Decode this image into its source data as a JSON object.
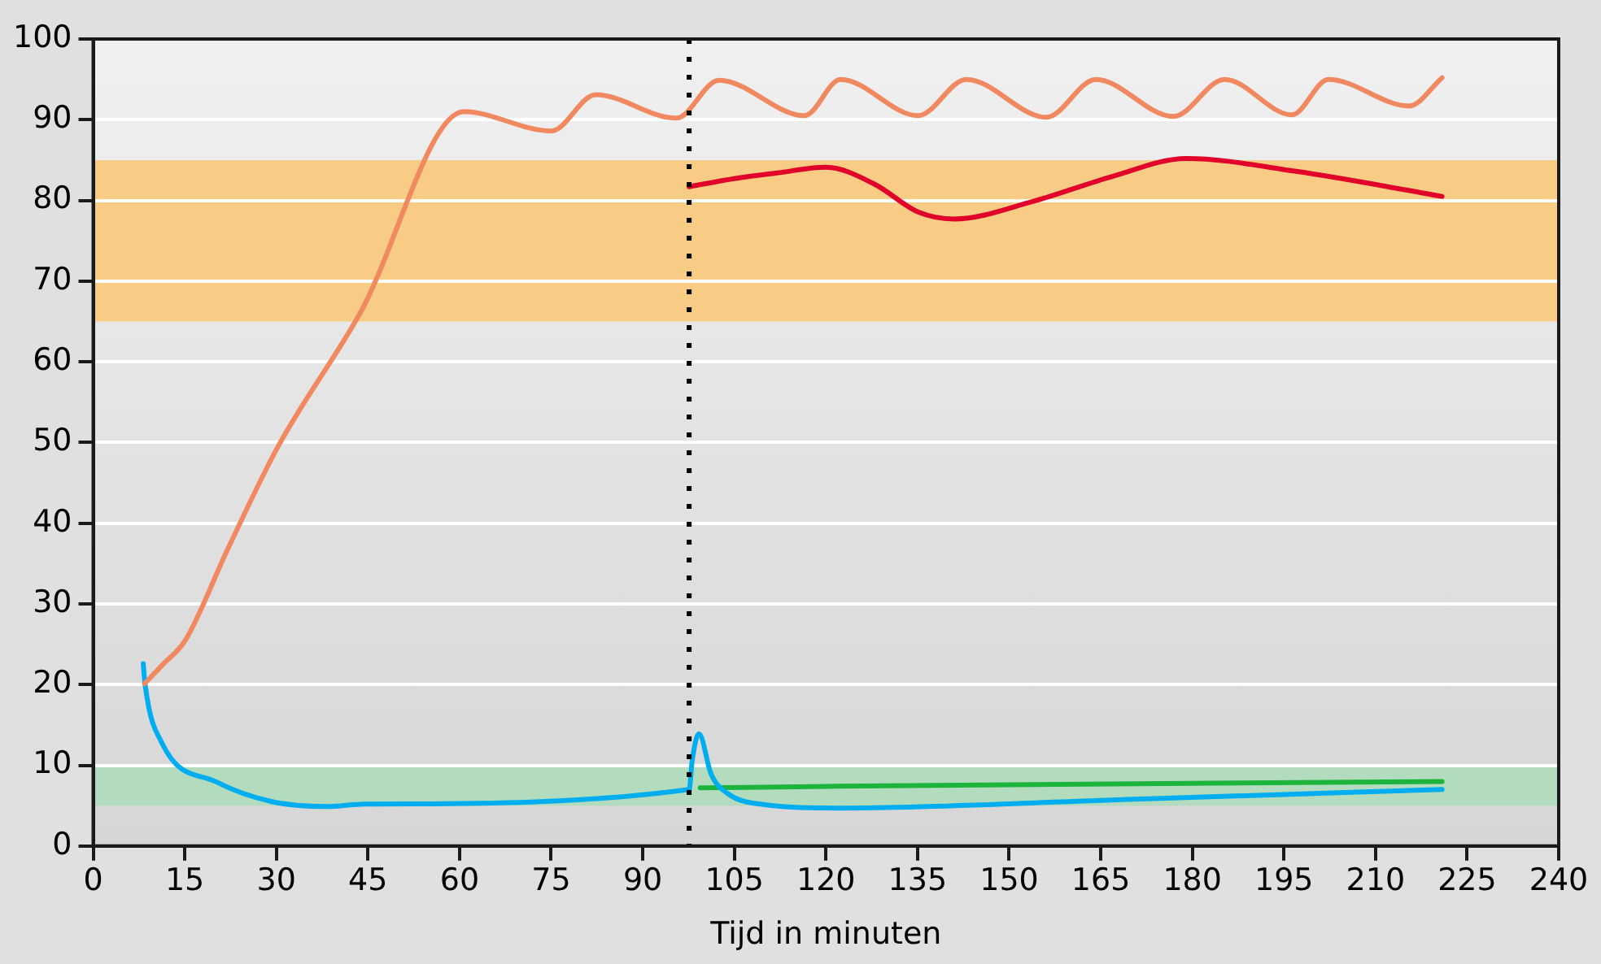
{
  "chart_data": {
    "type": "line",
    "xlabel": "Tijd in minuten",
    "xlim": [
      0,
      240
    ],
    "xticks": [
      0,
      15,
      30,
      45,
      60,
      75,
      90,
      105,
      120,
      135,
      150,
      165,
      180,
      195,
      210,
      225,
      240
    ],
    "ylim": [
      0,
      100
    ],
    "yticks": [
      0,
      10,
      20,
      30,
      40,
      50,
      60,
      70,
      80,
      90,
      100
    ],
    "grid": "y",
    "legend": false,
    "marker": "none",
    "line_style": "solid",
    "series": [
      {
        "color": "#f08860",
        "x": [
          8.4,
          11.3,
          15.1,
          22.1,
          30.2,
          43.7,
          60.7,
          75,
          82.3,
          95.5,
          102.5,
          116.5,
          122.4,
          135.1,
          143,
          156.1,
          164.2,
          176.9,
          185.3,
          196.3,
          202.3,
          215.5,
          220.9
        ],
        "values": [
          20.1,
          22.4,
          25.5,
          36.9,
          49.4,
          66,
          91,
          88.6,
          93.1,
          90.2,
          94.9,
          90.5,
          95,
          90.5,
          95,
          90.3,
          95,
          90.4,
          95,
          90.6,
          95,
          91.7,
          95.2
        ]
      },
      {
        "color": "#e0002a",
        "x": [
          97.6,
          105,
          112,
          120,
          128,
          135,
          141,
          154,
          167,
          179,
          197,
          220.9
        ],
        "values": [
          81.7,
          82.7,
          83.4,
          84.1,
          82,
          78.6,
          77.7,
          79.9,
          83,
          85.2,
          83.6,
          80.5
        ]
      },
      {
        "color": "#00aeef",
        "x": [
          8.2,
          8.5,
          11.3,
          20.3,
          29.3,
          38.3,
          44.5,
          97.6,
          98.1,
          99.2,
          101.2,
          103.9,
          110.2,
          121.9,
          170.6,
          220.9
        ],
        "values": [
          22.6,
          20,
          12.7,
          7.9,
          5.5,
          4.9,
          5.2,
          7,
          10.6,
          13.9,
          8.9,
          6.5,
          5.1,
          4.7,
          5.8,
          7
        ]
      },
      {
        "color": "#1db43c",
        "x": [
          99.4,
          121.9,
          220.9
        ],
        "values": [
          7.2,
          7.4,
          8
        ]
      }
    ],
    "bands": [
      {
        "axis": "y",
        "from": 65,
        "to": 85,
        "color": "#f8cc85"
      },
      {
        "axis": "y",
        "from": 5,
        "to": 10,
        "color": "#b3dcbf"
      }
    ],
    "ref_lines": [
      {
        "axis": "x",
        "value": 97.6,
        "color": "#000000",
        "line_style": "dotted"
      }
    ]
  }
}
